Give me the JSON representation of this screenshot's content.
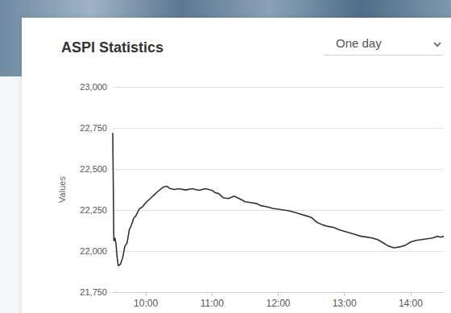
{
  "header": {
    "selector": "One day"
  },
  "chart_data": {
    "type": "line",
    "title": "ASPI Statistics",
    "y_label": "Values",
    "color": "#333333",
    "grid": true,
    "xlim": [
      570,
      870
    ],
    "xticks": [
      {
        "value": 600,
        "label": "10:00"
      },
      {
        "value": 660,
        "label": "11:00"
      },
      {
        "value": 720,
        "label": "12:00"
      },
      {
        "value": 780,
        "label": "13:00"
      },
      {
        "value": 840,
        "label": "14:00"
      }
    ],
    "ylim": [
      21750,
      23000
    ],
    "yticks": [
      {
        "value": 21750,
        "label": "21,750"
      },
      {
        "value": 22000,
        "label": "22,000"
      },
      {
        "value": 22250,
        "label": "22,250"
      },
      {
        "value": 22500,
        "label": "22,500"
      },
      {
        "value": 22750,
        "label": "22,750"
      },
      {
        "value": 23000,
        "label": "23,000"
      }
    ],
    "x": [
      570,
      571,
      572,
      573,
      574,
      575,
      577,
      579,
      581,
      583,
      585,
      587,
      589,
      591,
      594,
      597,
      600,
      604,
      608,
      612,
      616,
      619,
      622,
      626,
      630,
      636,
      642,
      648,
      654,
      660,
      663,
      666,
      670,
      675,
      680,
      686,
      690,
      695,
      700,
      705,
      710,
      715,
      720,
      725,
      730,
      735,
      740,
      745,
      750,
      755,
      760,
      765,
      770,
      775,
      780,
      785,
      790,
      795,
      800,
      805,
      810,
      815,
      820,
      825,
      830,
      835,
      840,
      845,
      850,
      855,
      860,
      864,
      867,
      870
    ],
    "values": [
      22720,
      22060,
      22080,
      22040,
      21960,
      21910,
      21920,
      21960,
      22030,
      22050,
      22130,
      22160,
      22200,
      22215,
      22255,
      22270,
      22295,
      22320,
      22345,
      22370,
      22390,
      22395,
      22380,
      22375,
      22380,
      22372,
      22380,
      22370,
      22380,
      22370,
      22355,
      22350,
      22325,
      22320,
      22335,
      22315,
      22300,
      22295,
      22290,
      22275,
      22270,
      22260,
      22255,
      22250,
      22245,
      22235,
      22225,
      22215,
      22205,
      22175,
      22160,
      22150,
      22145,
      22130,
      22120,
      22110,
      22100,
      22090,
      22085,
      22080,
      22070,
      22050,
      22030,
      22020,
      22025,
      22035,
      22055,
      22065,
      22070,
      22075,
      22080,
      22090,
      22085,
      22090
    ]
  }
}
